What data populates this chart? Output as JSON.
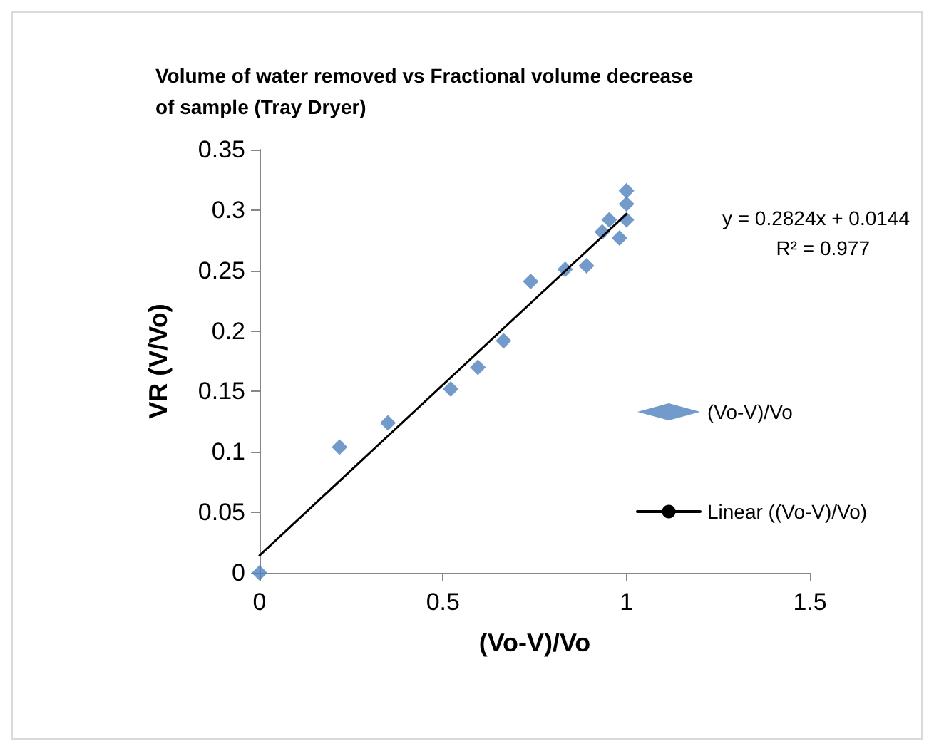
{
  "chart_data": {
    "type": "scatter",
    "title": "Volume of water removed vs Fractional volume decrease\nof sample (Tray Dryer)",
    "xlabel": "(Vo-V)/Vo",
    "ylabel": "VR (V/Vo)",
    "annotations": [
      "y = 0.2824x + 0.0144",
      "R² = 0.977"
    ],
    "xlim": [
      0,
      1.5
    ],
    "xticks": [
      0,
      0.5,
      1,
      1.5
    ],
    "ylim": [
      0,
      0.35
    ],
    "yticks": [
      0,
      0.05,
      0.1,
      0.15,
      0.2,
      0.25,
      0.3,
      0.35
    ],
    "grid": false,
    "legend": "right",
    "marker": "diamond",
    "series": [
      {
        "name": "(Vo-V)/Vo",
        "color": "#4f81bd",
        "x": [
          0,
          0.218,
          0.35,
          0.521,
          0.595,
          0.665,
          0.739,
          0.833,
          0.891,
          0.934,
          0.953,
          0.981,
          1.0,
          1.0,
          1.0
        ],
        "values": [
          0,
          0.104,
          0.124,
          0.152,
          0.17,
          0.192,
          0.241,
          0.251,
          0.254,
          0.282,
          0.292,
          0.277,
          0.292,
          0.305,
          0.316
        ]
      },
      {
        "name": "Linear ((Vo-V)/Vo)",
        "type": "line",
        "color": "#000000",
        "line_style": "solid",
        "marker": "none",
        "x": [
          0,
          1
        ],
        "values": [
          0.0144,
          0.2968
        ]
      }
    ]
  }
}
